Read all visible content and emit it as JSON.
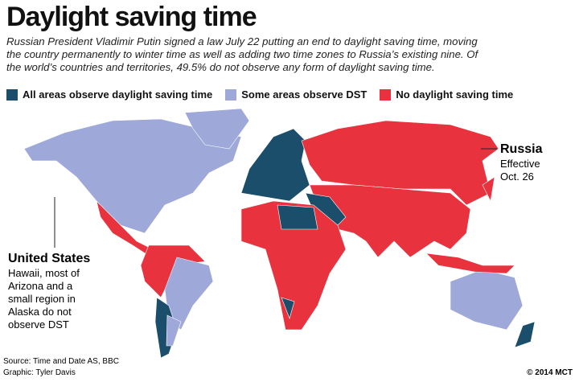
{
  "header": {
    "title": "Daylight saving time",
    "subtitle_lines": [
      "Russian President Vladimir Putin signed a law July 22 putting an end to daylight saving time, moving",
      "the country permanently to winter time as well as adding two time zones to Russia’s existing nine. Of",
      "the world’s countries and territories, 49.5% do not observe any form of daylight saving time."
    ]
  },
  "legend": [
    {
      "label": "All areas observe daylight saving time",
      "color": "#1b4e6b"
    },
    {
      "label": "Some areas observe DST",
      "color": "#9ea8d9"
    },
    {
      "label": "No daylight saving time",
      "color": "#e8333f"
    }
  ],
  "annotations": {
    "russia": {
      "title": "Russia",
      "lines": [
        "Effective",
        "Oct. 26"
      ]
    },
    "united_states": {
      "title": "United States",
      "lines": [
        "Hawaii, most of",
        "Arizona and a",
        "small region in",
        "Alaska do not",
        "observe DST"
      ]
    }
  },
  "footer": {
    "source": "Source: Time and Date AS, BBC",
    "graphic": "Graphic: Tyler Davis",
    "copyright": "© 2014 MCT"
  }
}
